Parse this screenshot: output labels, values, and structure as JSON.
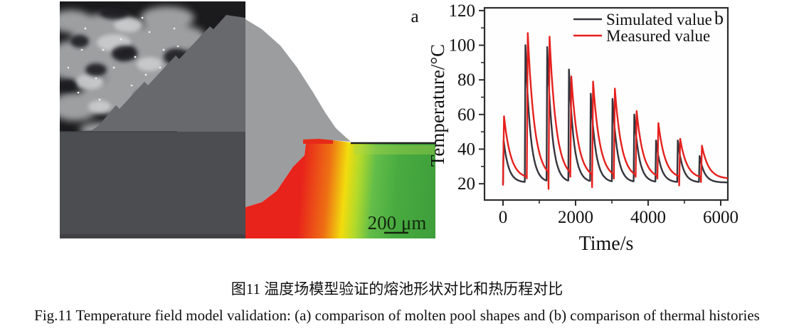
{
  "figure": {
    "panel_a": {
      "label": "a",
      "scale_bar_label": "200 μm"
    },
    "panel_b": {
      "label": "b"
    }
  },
  "chart_data": {
    "type": "line",
    "title": "",
    "xlabel": "Time/s",
    "ylabel": "Temperature/°C",
    "xlim": [
      -510,
      6200
    ],
    "ylim": [
      10.6,
      121.6
    ],
    "x_major_ticks": [
      0,
      2000,
      4000,
      6000
    ],
    "x_minor_ticks": [
      1000,
      3000,
      5000
    ],
    "y_major_ticks": [
      20,
      40,
      60,
      80,
      100,
      120
    ],
    "y_minor_ticks": [
      30,
      50,
      70,
      90,
      110
    ],
    "grid": false,
    "legend_position": "top-inside",
    "legend": [
      {
        "name": "Simulated value",
        "color": "#35353d"
      },
      {
        "name": "Measured value",
        "color": "#e5211e"
      }
    ],
    "cycles": {
      "start_times": [
        0,
        600,
        1200,
        1800,
        2400,
        3000,
        3600,
        4200,
        4800,
        5400
      ],
      "simulated_peaks": [
        45,
        100,
        99,
        86,
        72,
        69,
        60,
        45,
        45,
        36
      ],
      "measured_peaks": [
        59,
        107,
        105,
        82,
        79,
        75,
        62,
        55,
        46,
        42
      ],
      "measured_dips": [
        19,
        23,
        17,
        24,
        18,
        23,
        24,
        23,
        19,
        21
      ],
      "simulated_baseline": 20.7,
      "measured_baseline": 22.8,
      "decay_tau_simulated": 135,
      "decay_tau_measured": 185,
      "end_time": 6200,
      "end_temperature": 21.5
    }
  },
  "caption": {
    "zh": "图11  温度场模型验证的熔池形状对比和热历程对比",
    "en": "Fig.11  Temperature field model validation: (a) comparison of molten pool shapes and (b) comparison of thermal histories"
  }
}
